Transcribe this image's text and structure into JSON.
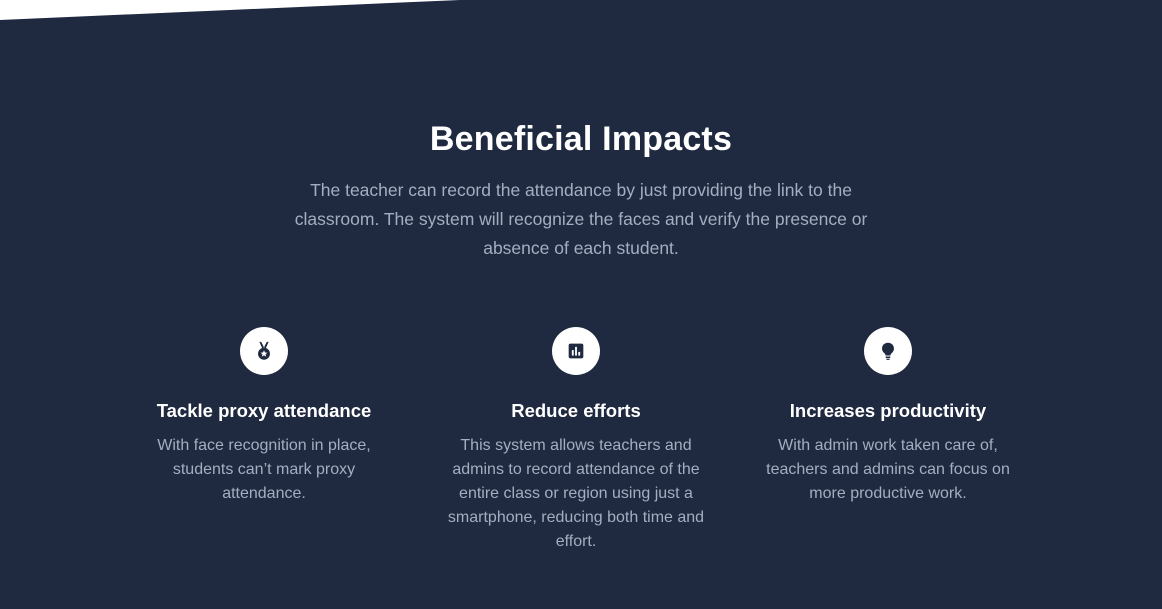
{
  "section": {
    "title": "Beneficial Impacts",
    "intro": "The teacher can record the attendance by just providing the link to the classroom. The system will recognize the faces and verify the presence or absence of each student."
  },
  "features": [
    {
      "icon": "medal-icon",
      "title": "Tackle proxy attendance",
      "text": "With face recognition in place, students can’t mark proxy attendance."
    },
    {
      "icon": "bar-chart-icon",
      "title": "Reduce efforts",
      "text": "This system allows teachers and admins to record attendance of the entire class or region using just a smartphone, reducing both time and effort."
    },
    {
      "icon": "lightbulb-icon",
      "title": "Increases productivity",
      "text": "With admin work taken care of, teachers and admins can focus on more productive work."
    }
  ],
  "colors": {
    "background": "#1f2940",
    "muted_text": "#a5aec0",
    "icon_bg": "#ffffff",
    "icon_fg": "#1f2940"
  }
}
